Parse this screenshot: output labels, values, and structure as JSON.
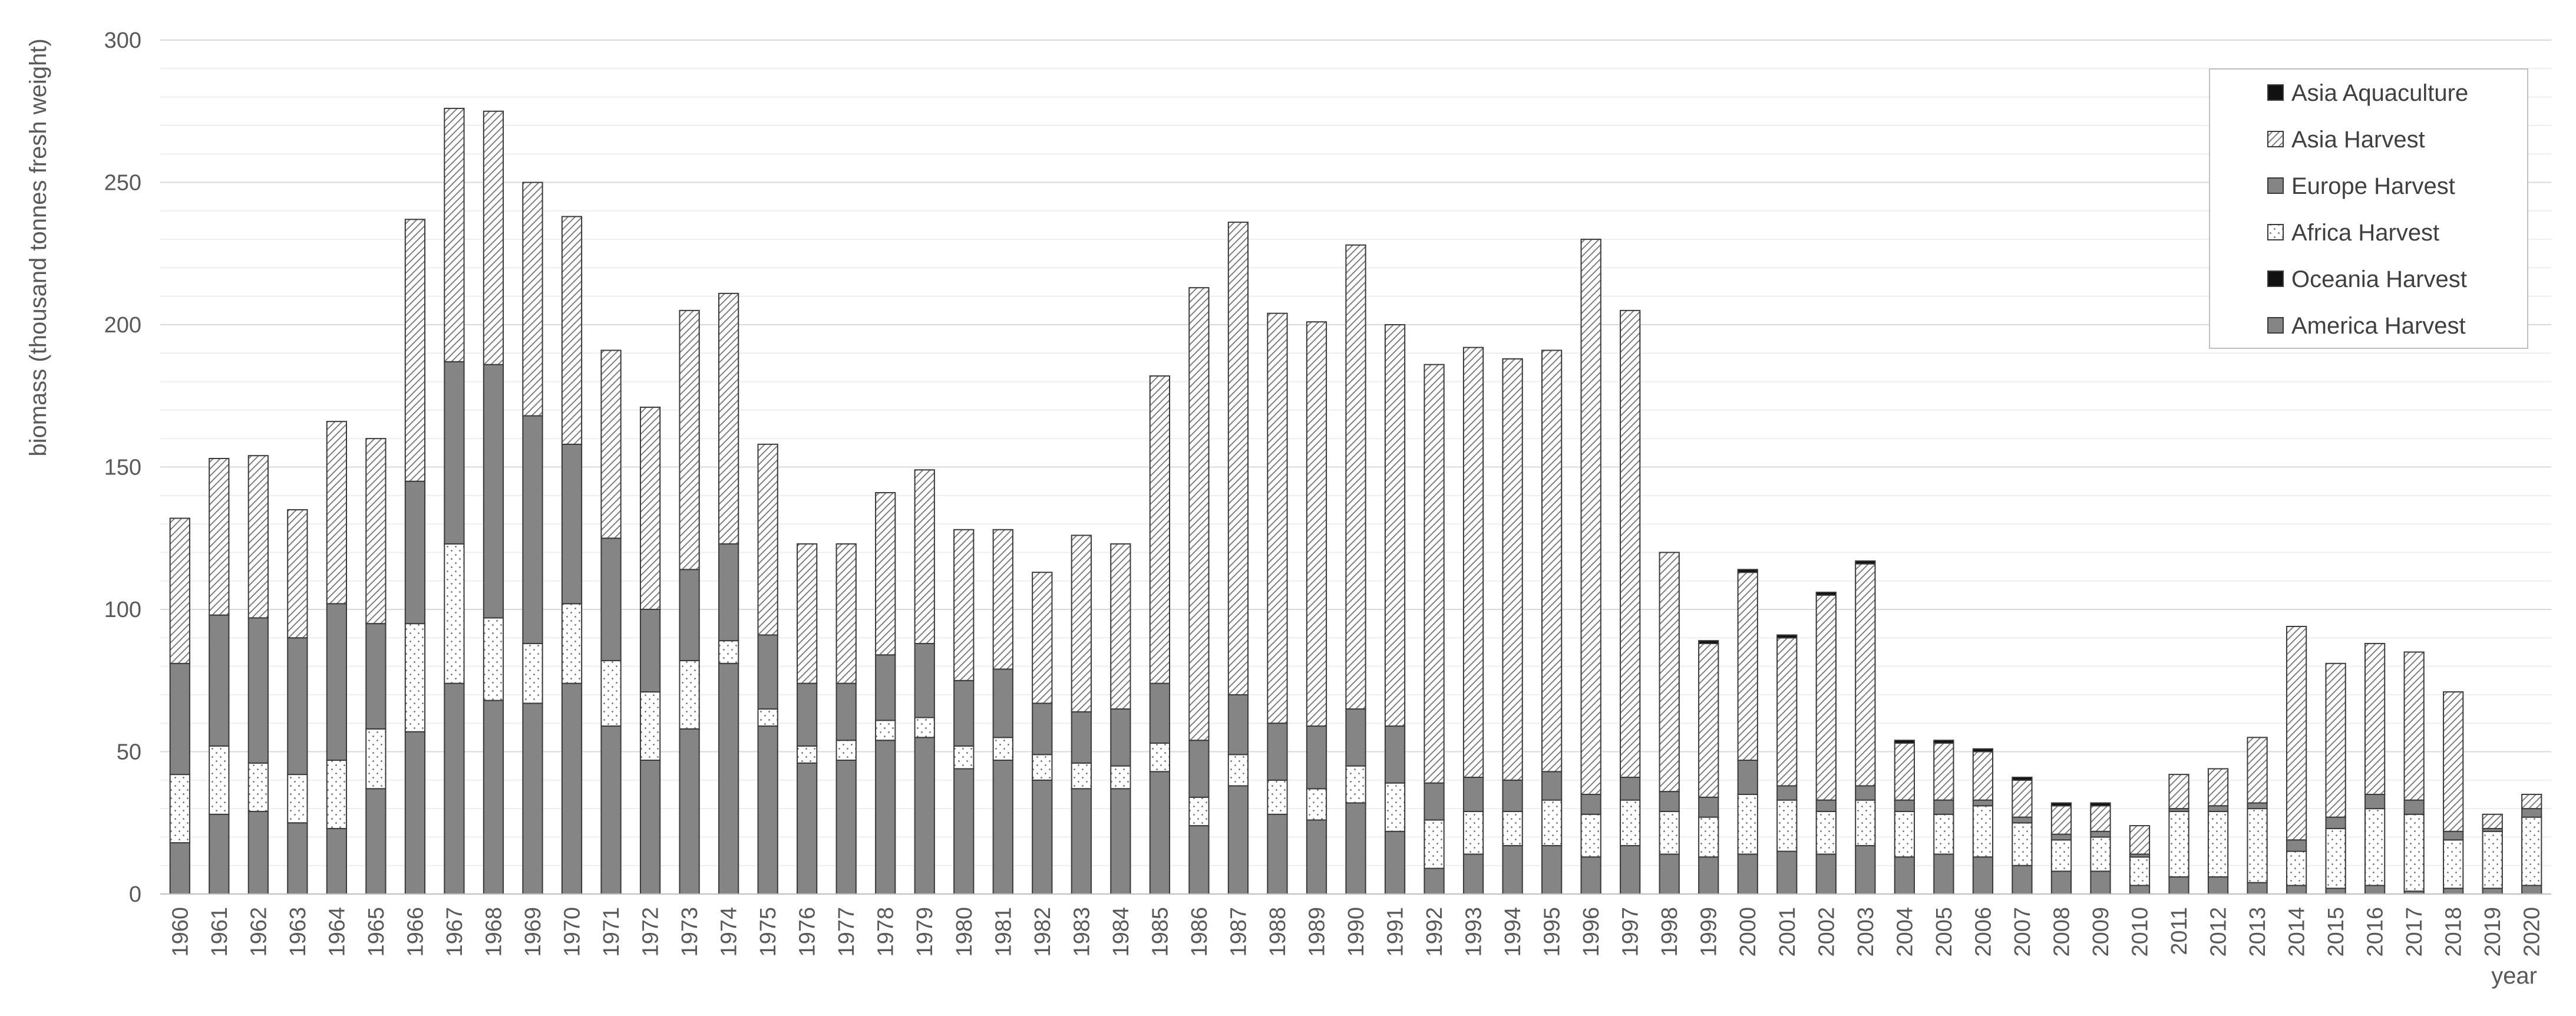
{
  "chart_data": {
    "type": "bar",
    "stacked": true,
    "title": "",
    "xlabel": "year",
    "ylabel": "biomass (thousand tonnes fresh weight)",
    "ylim": [
      0,
      300
    ],
    "yticks": [
      0,
      50,
      100,
      150,
      200,
      250,
      300
    ],
    "grid": true,
    "legend_position": "top-right",
    "categories": [
      "1960",
      "1961",
      "1962",
      "1963",
      "1964",
      "1965",
      "1966",
      "1967",
      "1968",
      "1969",
      "1970",
      "1971",
      "1972",
      "1973",
      "1974",
      "1975",
      "1976",
      "1977",
      "1978",
      "1979",
      "1980",
      "1981",
      "1982",
      "1983",
      "1984",
      "1985",
      "1986",
      "1987",
      "1988",
      "1989",
      "1990",
      "1991",
      "1992",
      "1993",
      "1994",
      "1995",
      "1996",
      "1997",
      "1998",
      "1999",
      "2000",
      "2001",
      "2002",
      "2003",
      "2004",
      "2005",
      "2006",
      "2007",
      "2008",
      "2009",
      "2010",
      "2011",
      "2012",
      "2013",
      "2014",
      "2015",
      "2016",
      "2017",
      "2018",
      "2019",
      "2020"
    ],
    "series": [
      {
        "name": "America Harvest",
        "pattern": "solid-gray",
        "values": [
          18,
          28,
          29,
          25,
          23,
          37,
          57,
          74,
          68,
          67,
          74,
          59,
          47,
          58,
          81,
          59,
          46,
          47,
          54,
          55,
          44,
          47,
          40,
          37,
          37,
          43,
          24,
          38,
          28,
          26,
          32,
          22,
          9,
          14,
          17,
          17,
          13,
          17,
          14,
          13,
          14,
          15,
          14,
          17,
          13,
          14,
          13,
          10,
          8,
          8,
          3,
          6,
          6,
          4,
          3,
          2,
          3,
          1,
          2,
          2,
          3
        ]
      },
      {
        "name": "Oceania Harvest",
        "pattern": "solid-black",
        "values": [
          0,
          0,
          0,
          0,
          0,
          0,
          0,
          0,
          0,
          0,
          0,
          0,
          0,
          0,
          0,
          0,
          0,
          0,
          0,
          0,
          0,
          0,
          0,
          0,
          0,
          0,
          0,
          0,
          0,
          0,
          0,
          0,
          0,
          0,
          0,
          0,
          0,
          0,
          0,
          0,
          0,
          0,
          0,
          0,
          0,
          0,
          0,
          0,
          0,
          0,
          0,
          0,
          0,
          0,
          0,
          0,
          0,
          0,
          0,
          0,
          0
        ]
      },
      {
        "name": "Africa Harvest",
        "pattern": "dots",
        "values": [
          24,
          24,
          17,
          17,
          24,
          21,
          38,
          49,
          29,
          21,
          28,
          23,
          24,
          24,
          8,
          6,
          6,
          7,
          7,
          7,
          8,
          8,
          9,
          9,
          8,
          10,
          10,
          11,
          12,
          11,
          13,
          17,
          17,
          15,
          12,
          16,
          15,
          16,
          15,
          14,
          21,
          18,
          15,
          16,
          16,
          14,
          18,
          15,
          11,
          12,
          10,
          23,
          23,
          26,
          12,
          21,
          27,
          27,
          17,
          20,
          24
        ]
      },
      {
        "name": "Europe Harvest",
        "pattern": "solid-gray",
        "values": [
          39,
          46,
          51,
          48,
          55,
          37,
          50,
          64,
          89,
          80,
          56,
          43,
          29,
          32,
          34,
          26,
          22,
          20,
          23,
          26,
          23,
          24,
          18,
          18,
          20,
          21,
          20,
          21,
          20,
          22,
          20,
          20,
          13,
          12,
          11,
          10,
          7,
          8,
          7,
          7,
          12,
          5,
          4,
          5,
          4,
          5,
          2,
          2,
          2,
          2,
          1,
          1,
          2,
          2,
          4,
          4,
          5,
          5,
          3,
          1,
          3
        ]
      },
      {
        "name": "Asia Harvest",
        "pattern": "hatch",
        "values": [
          51,
          55,
          57,
          45,
          64,
          65,
          92,
          89,
          89,
          82,
          80,
          66,
          71,
          91,
          88,
          67,
          49,
          49,
          57,
          61,
          53,
          49,
          46,
          62,
          58,
          108,
          159,
          166,
          144,
          142,
          163,
          141,
          147,
          151,
          148,
          148,
          195,
          164,
          84,
          54,
          66,
          52,
          72,
          78,
          20,
          20,
          17,
          13,
          10,
          9,
          10,
          12,
          13,
          23,
          75,
          54,
          53,
          52,
          49,
          5,
          5
        ]
      },
      {
        "name": "Asia Aquaculture",
        "pattern": "solid-black",
        "values": [
          0,
          0,
          0,
          0,
          0,
          0,
          0,
          0,
          0,
          0,
          0,
          0,
          0,
          0,
          0,
          0,
          0,
          0,
          0,
          0,
          0,
          0,
          0,
          0,
          0,
          0,
          0,
          0,
          0,
          0,
          0,
          0,
          0,
          0,
          0,
          0,
          0,
          0,
          0,
          1,
          1,
          1,
          1,
          1,
          1,
          1,
          1,
          1,
          1,
          1,
          0,
          0,
          0,
          0,
          0,
          0,
          0,
          0,
          0,
          0,
          0
        ]
      }
    ],
    "legend_order": [
      "Asia Aquaculture",
      "Asia Harvest",
      "Europe Harvest",
      "Africa Harvest",
      "Oceania Harvest",
      "America Harvest"
    ]
  }
}
